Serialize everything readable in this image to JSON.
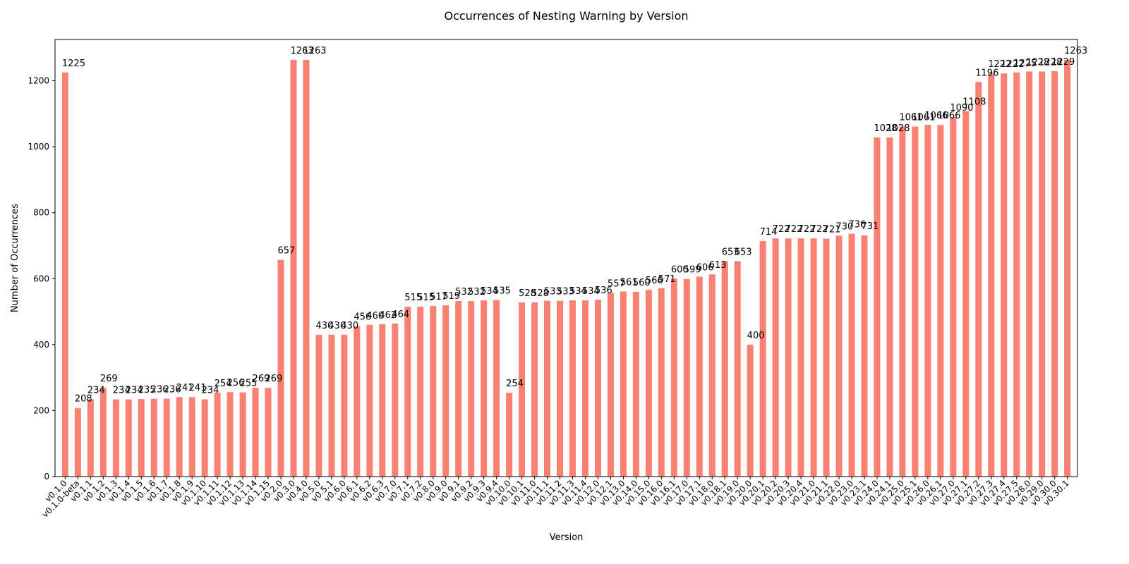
{
  "chart_data": {
    "type": "bar",
    "title": "Occurrences of Nesting Warning by Version",
    "xlabel": "Version",
    "ylabel": "Number of Occurrences",
    "ylim": [
      0,
      1325
    ],
    "yticks": [
      0,
      200,
      400,
      600,
      800,
      1000,
      1200
    ],
    "grid": false,
    "legend": "none",
    "bar_color": "#fa8072",
    "categories": [
      "v0.1.0",
      "v0.1.0-beta",
      "v0.1.1",
      "v0.1.2",
      "v0.1.3",
      "v0.1.4",
      "v0.1.5",
      "v0.1.6",
      "v0.1.7",
      "v0.1.8",
      "v0.1.9",
      "v0.1.10",
      "v0.1.11",
      "v0.1.12",
      "v0.1.13",
      "v0.1.14",
      "v0.1.15",
      "v0.2.0",
      "v0.3.0",
      "v0.4.0",
      "v0.5.0",
      "v0.5.1",
      "v0.6.0",
      "v0.6.1",
      "v0.6.2",
      "v0.6.3",
      "v0.7.0",
      "v0.7.1",
      "v0.7.2",
      "v0.8.0",
      "v0.9.0",
      "v0.9.1",
      "v0.9.2",
      "v0.9.3",
      "v0.9.4",
      "v0.10.0",
      "v0.10.1",
      "v0.11.0",
      "v0.11.1",
      "v0.11.2",
      "v0.11.3",
      "v0.11.4",
      "v0.12.0",
      "v0.12.1",
      "v0.13.0",
      "v0.14.0",
      "v0.15.0",
      "v0.16.0",
      "v0.16.1",
      "v0.17.0",
      "v0.17.1",
      "v0.18.0",
      "v0.18.1",
      "v0.19.0",
      "v0.20.0",
      "v0.20.1",
      "v0.20.2",
      "v0.20.3",
      "v0.20.4",
      "v0.21.0",
      "v0.21.1",
      "v0.22.0",
      "v0.23.0",
      "v0.23.1",
      "v0.24.0",
      "v0.24.1",
      "v0.25.0",
      "v0.25.1",
      "v0.26.0",
      "v0.26.1",
      "v0.27.0",
      "v0.27.1",
      "v0.27.2",
      "v0.27.3",
      "v0.27.4",
      "v0.27.5",
      "v0.28.0",
      "v0.29.0",
      "v0.30.0",
      "v0.30.1"
    ],
    "values": [
      1225,
      208,
      234,
      269,
      234,
      234,
      235,
      236,
      236,
      241,
      241,
      234,
      254,
      256,
      255,
      269,
      269,
      657,
      1263,
      1263,
      430,
      430,
      430,
      456,
      460,
      462,
      464,
      515,
      515,
      517,
      519,
      532,
      532,
      534,
      535,
      254,
      528,
      528,
      533,
      533,
      534,
      534,
      536,
      557,
      561,
      560,
      566,
      571,
      600,
      599,
      606,
      613,
      653,
      653,
      400,
      714,
      722,
      722,
      722,
      722,
      721,
      730,
      736,
      731,
      1028,
      1028,
      1061,
      1061,
      1066,
      1066,
      1090,
      1108,
      1196,
      1222,
      1222,
      1225,
      1228,
      1228,
      1229,
      1263
    ]
  }
}
